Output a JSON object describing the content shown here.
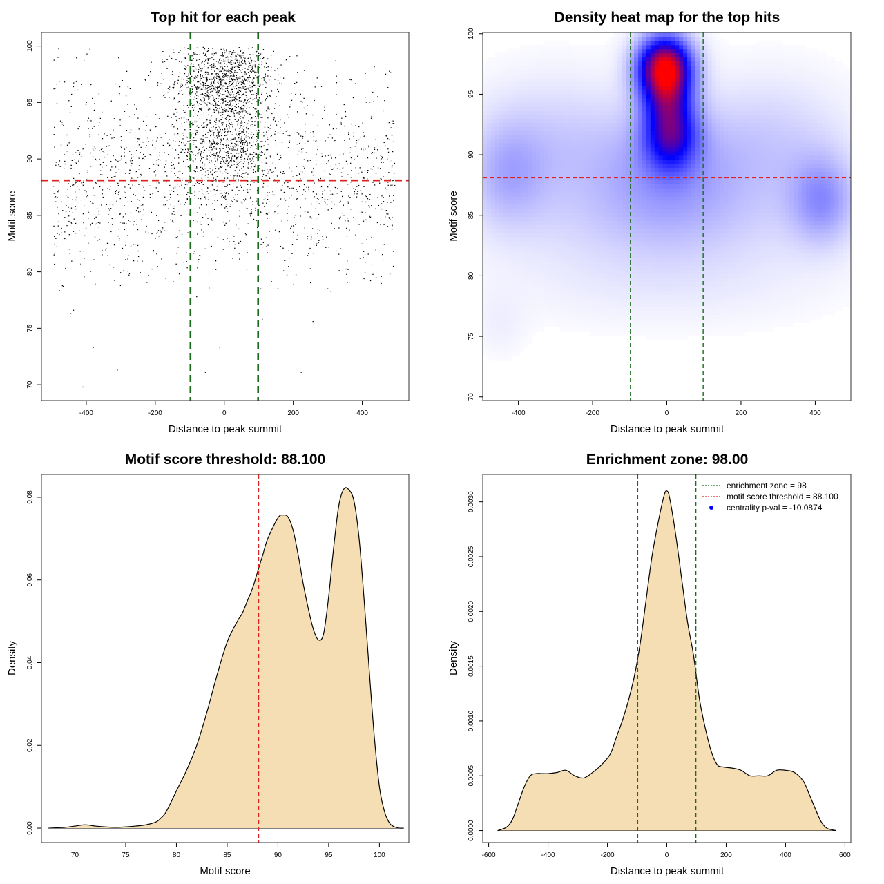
{
  "chart_data": [
    {
      "type": "scatter",
      "title": "Top hit for each peak",
      "xlabel": "Distance to peak summit",
      "ylabel": "Motif score",
      "xlim": [
        -530,
        535
      ],
      "ylim": [
        68.6,
        101.2
      ],
      "xticks": [
        -400,
        -200,
        0,
        200,
        400
      ],
      "yticks": [
        70,
        75,
        80,
        85,
        90,
        95,
        100
      ],
      "point_color": "#000000",
      "n_points_approx": 3400,
      "points_description_note": "",
      "sample_points": [
        [
          -482,
          99.0
        ],
        [
          -456,
          84.1
        ],
        [
          -437,
          76.6
        ],
        [
          -445,
          76.3
        ],
        [
          -410,
          69.8
        ],
        [
          -380,
          73.3
        ],
        [
          -310,
          71.3
        ],
        [
          -220,
          79.7
        ],
        [
          -13,
          73.3
        ],
        [
          -55,
          71.1
        ],
        [
          -80,
          77.8
        ],
        [
          223,
          71.1
        ],
        [
          257,
          75.6
        ],
        [
          300,
          78.5
        ],
        [
          110,
          75.8
        ],
        [
          -398,
          99.3
        ],
        [
          405,
          79.4
        ],
        [
          480,
          79.8
        ],
        [
          490,
          80.5
        ],
        [
          440,
          79.5
        ]
      ],
      "clusters": [
        {
          "x_mean": 0,
          "x_sd": 70,
          "y_mean": 97.0,
          "y_sd": 1.6,
          "weight": 0.3
        },
        {
          "x_mean": 10,
          "x_sd": 70,
          "y_mean": 91.5,
          "y_sd": 2.2,
          "weight": 0.24
        },
        {
          "x_mean": 0,
          "x_sd": 300,
          "y_mean": 88,
          "y_sd": 4.5,
          "weight": 0.46
        }
      ],
      "hlines": [
        {
          "y": 88.1,
          "color": "#dd2222",
          "style": "dashed"
        }
      ],
      "vlines": [
        {
          "x": -98,
          "color": "#1a6b1a",
          "style": "dashed"
        },
        {
          "x": 98,
          "color": "#1a6b1a",
          "style": "dashed"
        }
      ]
    },
    {
      "type": "heatmap",
      "title": "Density heat map for the top hits",
      "xlabel": "Distance to peak summit",
      "ylabel": "Motif score",
      "xlim": [
        -496,
        496
      ],
      "ylim": [
        69.7,
        100.1
      ],
      "xticks": [
        -400,
        -200,
        0,
        200,
        400
      ],
      "yticks": [
        70,
        75,
        80,
        85,
        90,
        95,
        100
      ],
      "colors": [
        "#ffffff",
        "#0000ff",
        "#ff0000"
      ],
      "hotspots": [
        {
          "x": -5,
          "y": 97.2,
          "sx": 50,
          "sy": 1.8,
          "w": 1.0
        },
        {
          "x": 10,
          "y": 91.8,
          "sx": 50,
          "sy": 2.0,
          "w": 0.55
        },
        {
          "x": 0,
          "y": 94.5,
          "sx": 45,
          "sy": 1.5,
          "w": 0.25
        },
        {
          "x": 0,
          "y": 88.5,
          "sx": 130,
          "sy": 3.5,
          "w": 0.18
        },
        {
          "x": 420,
          "y": 86.3,
          "sx": 60,
          "sy": 2.5,
          "w": 0.2
        },
        {
          "x": -430,
          "y": 88.5,
          "sx": 70,
          "sy": 3.0,
          "w": 0.13
        },
        {
          "x": -300,
          "y": 90.5,
          "sx": 150,
          "sy": 4.0,
          "w": 0.11
        },
        {
          "x": 280,
          "y": 90.5,
          "sx": 150,
          "sy": 4.0,
          "w": 0.11
        },
        {
          "x": 0,
          "y": 84,
          "sx": 300,
          "sy": 3.0,
          "w": 0.07
        },
        {
          "x": 0,
          "y": 79,
          "sx": 300,
          "sy": 2.5,
          "w": 0.035
        },
        {
          "x": -450,
          "y": 76,
          "sx": 50,
          "sy": 2,
          "w": 0.03
        }
      ],
      "hlines": [
        {
          "y": 88.1,
          "color": "#dd2222",
          "style": "dashed"
        }
      ],
      "vlines": [
        {
          "x": -98,
          "color": "#1a6b1a",
          "style": "dashed"
        },
        {
          "x": 98,
          "color": "#1a6b1a",
          "style": "dashed"
        }
      ]
    },
    {
      "type": "area",
      "title": "Motif score threshold: 88.100",
      "xlabel": "Motif score",
      "ylabel": "Density",
      "xlim": [
        66.7,
        102.9
      ],
      "ylim": [
        -0.0035,
        0.0855
      ],
      "xticks": [
        70,
        75,
        80,
        85,
        90,
        95,
        100
      ],
      "yticks": [
        0.0,
        0.02,
        0.04,
        0.06,
        0.08
      ],
      "ytick_labels": [
        "0.00",
        "0.02",
        "0.04",
        "0.06",
        "0.08"
      ],
      "fill_color": "#f5deb3",
      "x": [
        67.4,
        69,
        70,
        71,
        72,
        73,
        74,
        75,
        76,
        77,
        78,
        78.5,
        79,
        80,
        81,
        82,
        83,
        84,
        85,
        86,
        86.5,
        87,
        87.5,
        88,
        88.5,
        89,
        90,
        90.5,
        91,
        91.5,
        92,
        92.5,
        93,
        93.5,
        94,
        94.5,
        95,
        95.5,
        96,
        96.5,
        97,
        97.5,
        98,
        98.5,
        99,
        99.5,
        100,
        100.5,
        101,
        101.5,
        102,
        102.4
      ],
      "y": [
        0.0,
        0.0002,
        0.0005,
        0.0008,
        0.0005,
        0.0003,
        0.0002,
        0.0003,
        0.0005,
        0.0008,
        0.0015,
        0.0025,
        0.004,
        0.009,
        0.014,
        0.02,
        0.028,
        0.037,
        0.045,
        0.05,
        0.052,
        0.055,
        0.058,
        0.062,
        0.066,
        0.07,
        0.075,
        0.0757,
        0.0752,
        0.072,
        0.066,
        0.059,
        0.053,
        0.048,
        0.0455,
        0.047,
        0.056,
        0.068,
        0.078,
        0.082,
        0.0818,
        0.079,
        0.07,
        0.055,
        0.038,
        0.022,
        0.01,
        0.004,
        0.0012,
        0.0003,
        0.0,
        0.0
      ],
      "vlines": [
        {
          "x": 88.1,
          "color": "#dd2222",
          "style": "dashed"
        }
      ]
    },
    {
      "type": "area",
      "title": "Enrichment zone: 98.00",
      "xlabel": "Distance to peak summit",
      "ylabel": "Density",
      "xlim": [
        -620,
        620
      ],
      "ylim": [
        -0.00011,
        0.00325
      ],
      "xticks": [
        -600,
        -400,
        -200,
        0,
        200,
        400,
        600
      ],
      "yticks": [
        0.0,
        0.0005,
        0.001,
        0.0015,
        0.002,
        0.0025,
        0.003
      ],
      "ytick_labels": [
        "0.0000",
        "0.0005",
        "0.0010",
        "0.0015",
        "0.0020",
        "0.0025",
        "0.0030"
      ],
      "fill_color": "#f5deb3",
      "x": [
        -570,
        -540,
        -520,
        -500,
        -480,
        -460,
        -440,
        -420,
        -400,
        -370,
        -340,
        -310,
        -280,
        -250,
        -220,
        -190,
        -170,
        -150,
        -130,
        -110,
        -90,
        -70,
        -50,
        -30,
        -10,
        0,
        10,
        30,
        50,
        70,
        90,
        110,
        130,
        150,
        170,
        190,
        220,
        250,
        280,
        310,
        340,
        370,
        400,
        430,
        460,
        480,
        500,
        520,
        540,
        570
      ],
      "y": [
        0.0,
        3e-05,
        0.0001,
        0.00025,
        0.0004,
        0.0005,
        0.00052,
        0.00052,
        0.00052,
        0.00053,
        0.00055,
        0.0005,
        0.00048,
        0.00053,
        0.0006,
        0.0007,
        0.00085,
        0.001,
        0.00118,
        0.0014,
        0.0017,
        0.0021,
        0.0025,
        0.0028,
        0.00305,
        0.0031,
        0.00303,
        0.0027,
        0.0023,
        0.0019,
        0.0016,
        0.0012,
        0.00093,
        0.00072,
        0.0006,
        0.00058,
        0.00057,
        0.00055,
        0.0005,
        0.0005,
        0.0005,
        0.00055,
        0.00055,
        0.00053,
        0.00045,
        0.00033,
        0.0002,
        8e-05,
        2e-05,
        0.0
      ],
      "vlines": [
        {
          "x": -98,
          "color": "#1a6b1a",
          "style": "dashed"
        },
        {
          "x": 98,
          "color": "#1a6b1a",
          "style": "dashed"
        }
      ],
      "legend": {
        "position": "top-right",
        "entries": [
          {
            "label": "enrichment zone = 98",
            "kind": "line",
            "color": "#1a6b1a"
          },
          {
            "label": "motif score threshold = 88.100",
            "kind": "line",
            "color": "#dd2222"
          },
          {
            "label": "centrality p-val = -10.0874",
            "kind": "point",
            "color": "#0000ff"
          }
        ]
      }
    }
  ]
}
